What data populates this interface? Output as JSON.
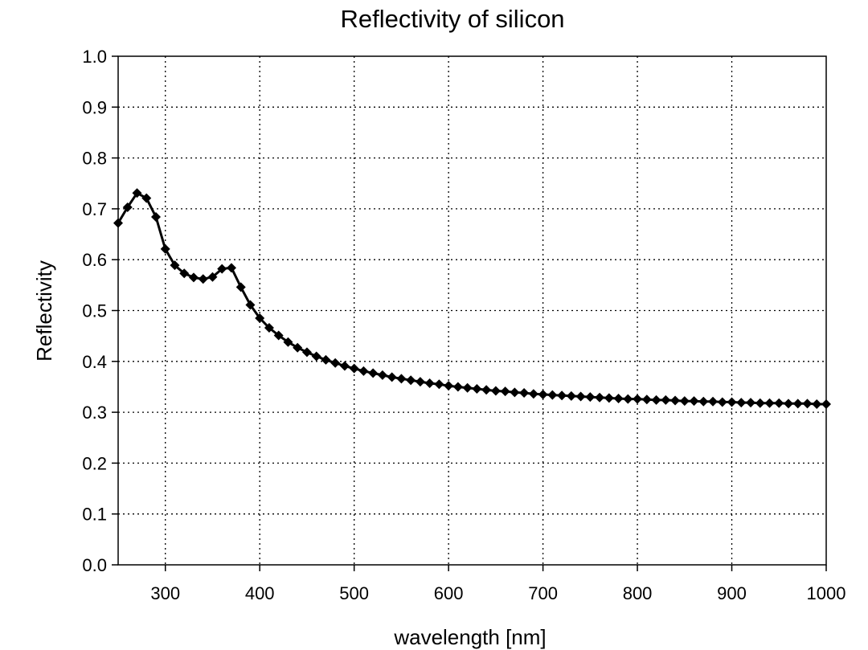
{
  "chart_data": {
    "type": "line",
    "title": "Reflectivity of silicon",
    "xlabel": "wavelength [nm]",
    "ylabel": "Reflectivity",
    "xlim": [
      250,
      1000
    ],
    "ylim": [
      0.0,
      1.0
    ],
    "xticks": [
      300,
      400,
      500,
      600,
      700,
      800,
      900,
      1000
    ],
    "xtick_labels": [
      "300",
      "400",
      "500",
      "600",
      "700",
      "800",
      "900",
      "1000"
    ],
    "yticks": [
      0.0,
      0.1,
      0.2,
      0.3,
      0.4,
      0.5,
      0.6,
      0.7,
      0.8,
      0.9,
      1.0
    ],
    "ytick_labels": [
      "0.0",
      "0.1",
      "0.2",
      "0.3",
      "0.4",
      "0.5",
      "0.6",
      "0.7",
      "0.8",
      "0.9",
      "1.0"
    ],
    "grid": true,
    "marker": "diamond",
    "color": "#000000",
    "series": [
      {
        "x": [
          250,
          260,
          270,
          280,
          290,
          300,
          310,
          320,
          330,
          340,
          350,
          360,
          370,
          380,
          390,
          400,
          410,
          420,
          430,
          440,
          450,
          460,
          470,
          480,
          490,
          500,
          510,
          520,
          530,
          540,
          550,
          560,
          570,
          580,
          590,
          600,
          610,
          620,
          630,
          640,
          650,
          660,
          670,
          680,
          690,
          700,
          710,
          720,
          730,
          740,
          750,
          760,
          770,
          780,
          790,
          800,
          810,
          820,
          830,
          840,
          850,
          860,
          870,
          880,
          890,
          900,
          910,
          920,
          930,
          940,
          950,
          960,
          970,
          980,
          990,
          1000
        ],
        "y": [
          0.672,
          0.703,
          0.731,
          0.721,
          0.684,
          0.621,
          0.589,
          0.573,
          0.565,
          0.562,
          0.566,
          0.582,
          0.584,
          0.546,
          0.511,
          0.485,
          0.466,
          0.451,
          0.438,
          0.427,
          0.418,
          0.41,
          0.403,
          0.397,
          0.391,
          0.386,
          0.381,
          0.377,
          0.373,
          0.369,
          0.366,
          0.363,
          0.36,
          0.357,
          0.355,
          0.352,
          0.35,
          0.348,
          0.346,
          0.344,
          0.342,
          0.341,
          0.339,
          0.338,
          0.336,
          0.335,
          0.334,
          0.333,
          0.332,
          0.331,
          0.33,
          0.329,
          0.328,
          0.327,
          0.326,
          0.326,
          0.325,
          0.324,
          0.324,
          0.323,
          0.322,
          0.322,
          0.321,
          0.321,
          0.32,
          0.32,
          0.319,
          0.319,
          0.318,
          0.318,
          0.318,
          0.317,
          0.317,
          0.317,
          0.316,
          0.316
        ]
      }
    ]
  }
}
